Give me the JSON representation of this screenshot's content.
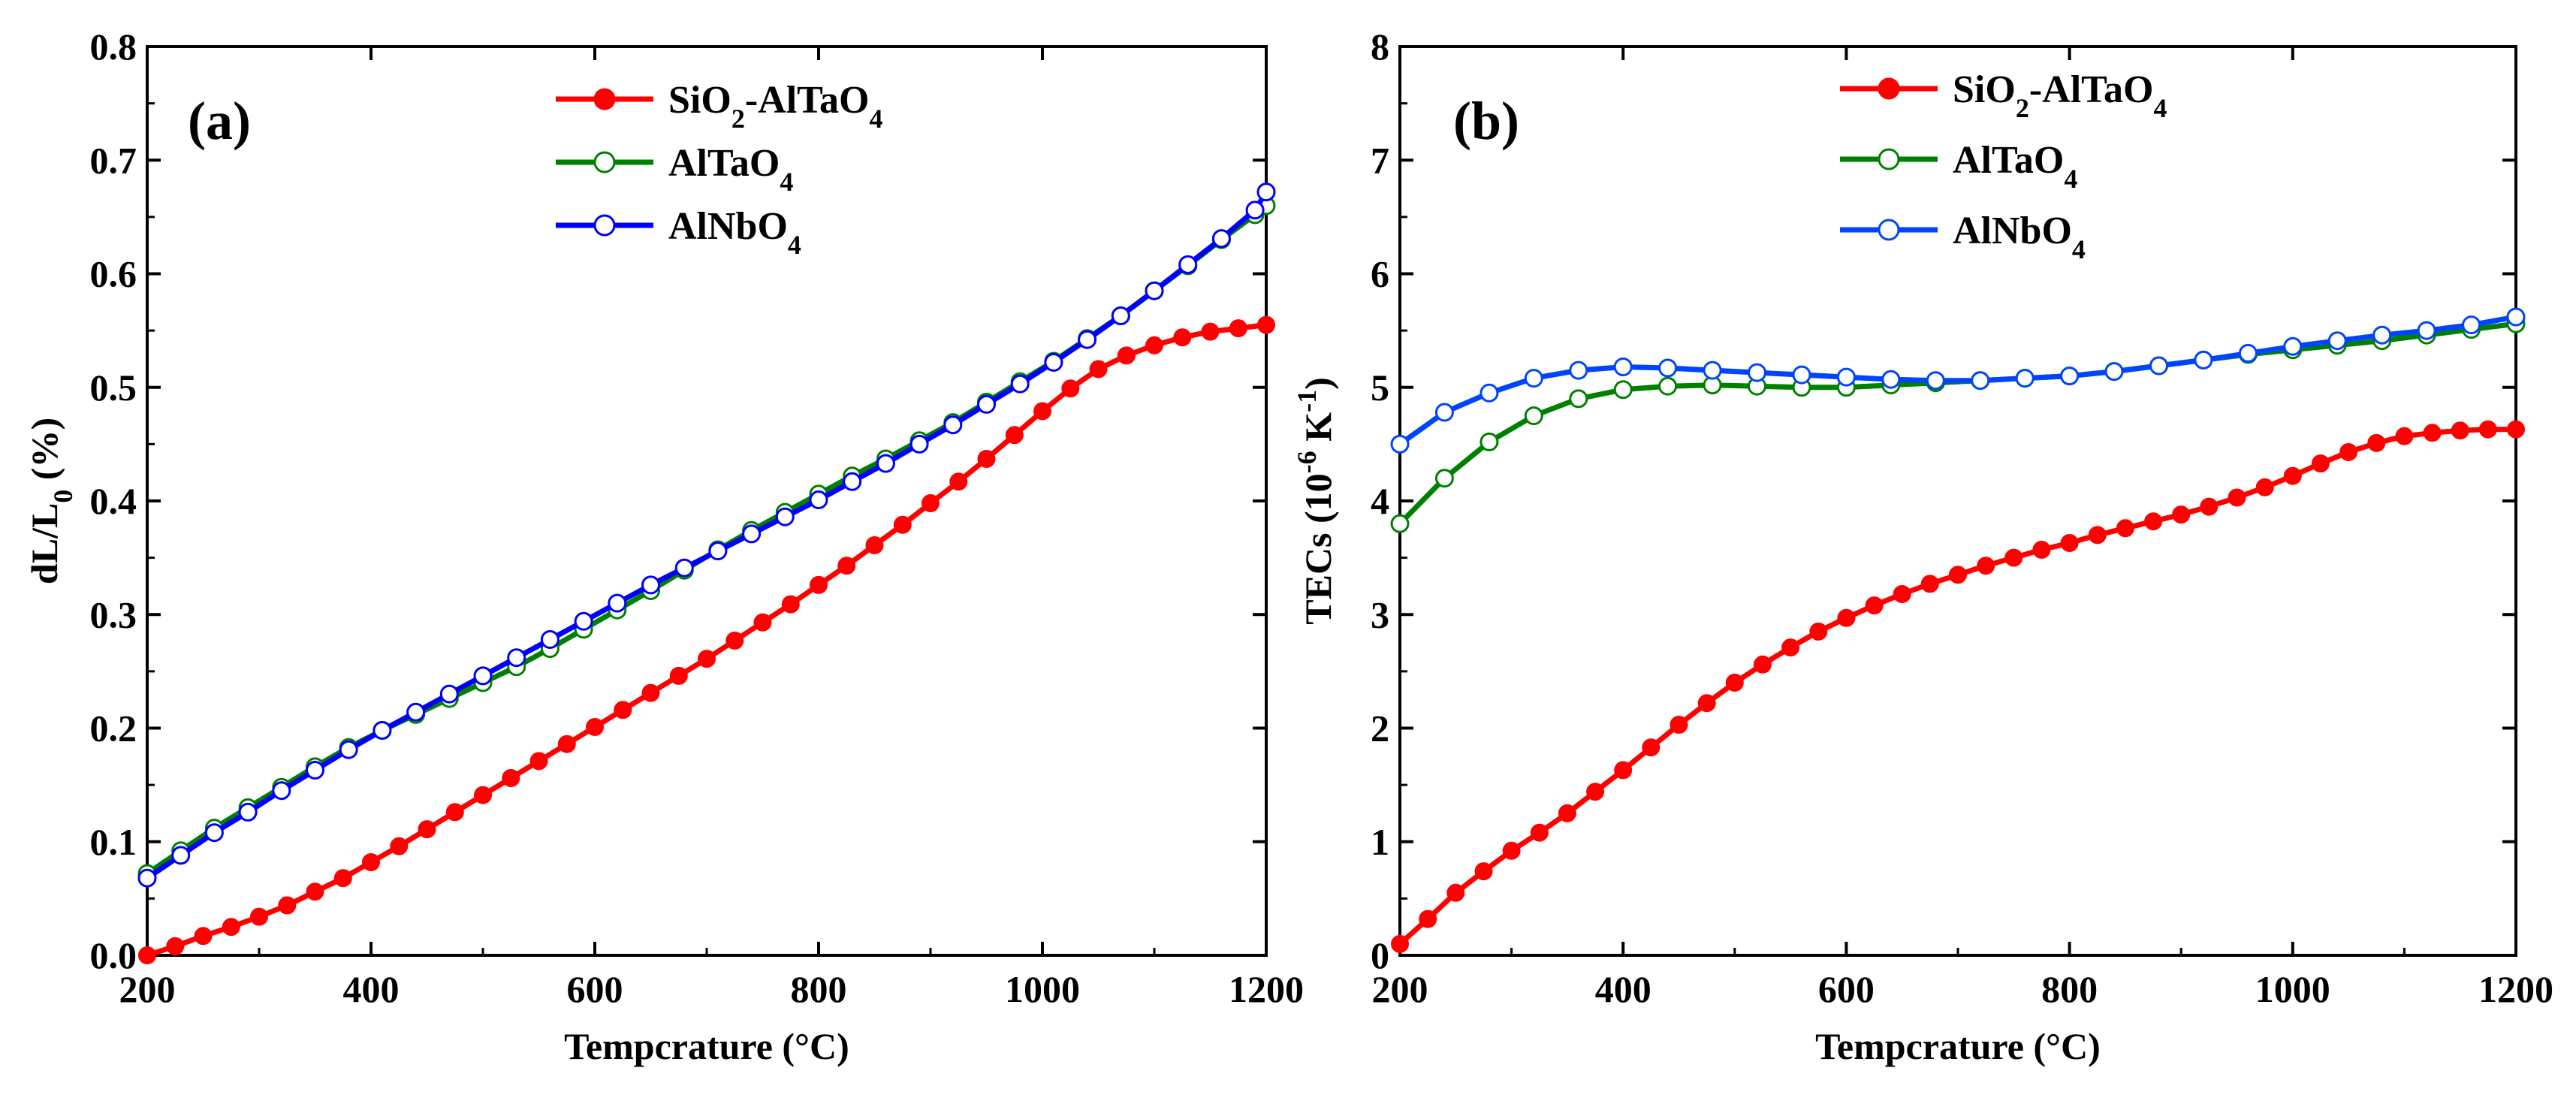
{
  "chart_data": [
    {
      "type": "line",
      "panel_label": "(a)",
      "xlabel": "Tempcrature (°C)",
      "ylabel": {
        "base": "dL/L",
        "sub": "0",
        "tail": " (%)"
      },
      "xlim": [
        200,
        1200
      ],
      "ylim": [
        0.0,
        0.8
      ],
      "xticks": [
        200,
        400,
        600,
        800,
        1000,
        1200
      ],
      "yticks": [
        0.0,
        0.1,
        0.2,
        0.3,
        0.4,
        0.5,
        0.6,
        0.7,
        0.8
      ],
      "ytick_decimals": 1,
      "grid": false,
      "legend_position": "top-center",
      "series": [
        {
          "name": {
            "base": "SiO",
            "sub": "2",
            "mid": "-AlTaO",
            "sub2": "4"
          },
          "color": "#ff0000",
          "marker": "filled-circle",
          "x": [
            200,
            225,
            250,
            275,
            300,
            325,
            350,
            375,
            400,
            425,
            450,
            475,
            500,
            525,
            550,
            575,
            600,
            625,
            650,
            675,
            700,
            725,
            750,
            775,
            800,
            825,
            850,
            875,
            900,
            925,
            950,
            975,
            1000,
            1025,
            1050,
            1075,
            1100,
            1125,
            1150,
            1175,
            1200
          ],
          "y": [
            0.0,
            0.008,
            0.017,
            0.025,
            0.034,
            0.044,
            0.056,
            0.068,
            0.082,
            0.096,
            0.111,
            0.126,
            0.141,
            0.156,
            0.171,
            0.186,
            0.201,
            0.216,
            0.231,
            0.246,
            0.261,
            0.277,
            0.293,
            0.309,
            0.326,
            0.343,
            0.361,
            0.379,
            0.398,
            0.417,
            0.437,
            0.458,
            0.479,
            0.499,
            0.516,
            0.528,
            0.537,
            0.544,
            0.549,
            0.552,
            0.555
          ]
        },
        {
          "name": {
            "base": "AlTaO",
            "sub": "4"
          },
          "color": "#008000",
          "marker": "open-circle",
          "x": [
            200,
            230,
            260,
            290,
            320,
            350,
            380,
            410,
            440,
            470,
            500,
            530,
            560,
            590,
            620,
            650,
            680,
            710,
            740,
            770,
            800,
            830,
            860,
            890,
            920,
            950,
            980,
            1010,
            1040,
            1070,
            1100,
            1130,
            1160,
            1190,
            1200
          ],
          "y": [
            0.072,
            0.092,
            0.112,
            0.13,
            0.148,
            0.166,
            0.183,
            0.198,
            0.212,
            0.226,
            0.24,
            0.254,
            0.27,
            0.287,
            0.304,
            0.321,
            0.339,
            0.357,
            0.374,
            0.39,
            0.406,
            0.422,
            0.437,
            0.453,
            0.469,
            0.487,
            0.505,
            0.523,
            0.543,
            0.563,
            0.585,
            0.607,
            0.63,
            0.652,
            0.66
          ]
        },
        {
          "name": {
            "base": "AlNbO",
            "sub": "4"
          },
          "color": "#0000ff",
          "marker": "open-circle",
          "x": [
            200,
            230,
            260,
            290,
            320,
            350,
            380,
            410,
            440,
            470,
            500,
            530,
            560,
            590,
            620,
            650,
            680,
            710,
            740,
            770,
            800,
            830,
            860,
            890,
            920,
            950,
            980,
            1010,
            1040,
            1070,
            1100,
            1130,
            1160,
            1190,
            1200
          ],
          "y": [
            0.068,
            0.088,
            0.108,
            0.126,
            0.145,
            0.163,
            0.181,
            0.198,
            0.214,
            0.23,
            0.246,
            0.262,
            0.278,
            0.294,
            0.31,
            0.326,
            0.341,
            0.356,
            0.371,
            0.386,
            0.401,
            0.417,
            0.433,
            0.45,
            0.467,
            0.485,
            0.503,
            0.522,
            0.542,
            0.563,
            0.585,
            0.608,
            0.631,
            0.656,
            0.672
          ]
        }
      ]
    },
    {
      "type": "line",
      "panel_label": "(b)",
      "xlabel": "Tempcrature (°C)",
      "ylabel": {
        "base": "TECs (10",
        "sup": "-6",
        "mid": " K",
        "sup2": "-1",
        "tail": ")"
      },
      "xlim": [
        200,
        1200
      ],
      "ylim": [
        0,
        8
      ],
      "xticks": [
        200,
        400,
        600,
        800,
        1000,
        1200
      ],
      "yticks": [
        0,
        1,
        2,
        3,
        4,
        5,
        6,
        7,
        8
      ],
      "ytick_decimals": 0,
      "grid": false,
      "legend_position": "top-center",
      "series": [
        {
          "name": {
            "base": "SiO",
            "sub": "2",
            "mid": "-AlTaO",
            "sub2": "4"
          },
          "color": "#ff0000",
          "marker": "filled-circle",
          "x": [
            200,
            225,
            250,
            275,
            300,
            325,
            350,
            375,
            400,
            425,
            450,
            475,
            500,
            525,
            550,
            575,
            600,
            625,
            650,
            675,
            700,
            725,
            750,
            775,
            800,
            825,
            850,
            875,
            900,
            925,
            950,
            975,
            1000,
            1025,
            1050,
            1075,
            1100,
            1125,
            1150,
            1175,
            1200
          ],
          "y": [
            0.1,
            0.32,
            0.55,
            0.74,
            0.92,
            1.08,
            1.25,
            1.44,
            1.63,
            1.83,
            2.03,
            2.22,
            2.4,
            2.56,
            2.71,
            2.85,
            2.97,
            3.08,
            3.18,
            3.27,
            3.35,
            3.43,
            3.5,
            3.57,
            3.63,
            3.7,
            3.76,
            3.82,
            3.88,
            3.95,
            4.03,
            4.12,
            4.22,
            4.33,
            4.43,
            4.51,
            4.57,
            4.6,
            4.62,
            4.63,
            4.63
          ]
        },
        {
          "name": {
            "base": "AlTaO",
            "sub": "4"
          },
          "color": "#008000",
          "marker": "open-circle",
          "x": [
            200,
            240,
            280,
            320,
            360,
            400,
            440,
            480,
            520,
            560,
            600,
            640,
            680,
            720,
            760,
            800,
            840,
            880,
            920,
            960,
            1000,
            1040,
            1080,
            1120,
            1160,
            1200
          ],
          "y": [
            3.8,
            4.2,
            4.52,
            4.75,
            4.9,
            4.98,
            5.01,
            5.02,
            5.01,
            5.0,
            5.0,
            5.02,
            5.04,
            5.06,
            5.08,
            5.1,
            5.14,
            5.19,
            5.24,
            5.29,
            5.33,
            5.37,
            5.41,
            5.46,
            5.51,
            5.56
          ]
        },
        {
          "name": {
            "base": "AlNbO",
            "sub": "4"
          },
          "color": "#0044ff",
          "marker": "open-circle",
          "x": [
            200,
            240,
            280,
            320,
            360,
            400,
            440,
            480,
            520,
            560,
            600,
            640,
            680,
            720,
            760,
            800,
            840,
            880,
            920,
            960,
            1000,
            1040,
            1080,
            1120,
            1160,
            1200
          ],
          "y": [
            4.5,
            4.78,
            4.95,
            5.08,
            5.15,
            5.18,
            5.17,
            5.15,
            5.13,
            5.11,
            5.09,
            5.07,
            5.06,
            5.06,
            5.08,
            5.1,
            5.14,
            5.19,
            5.24,
            5.3,
            5.36,
            5.41,
            5.46,
            5.5,
            5.55,
            5.62
          ]
        }
      ]
    }
  ]
}
